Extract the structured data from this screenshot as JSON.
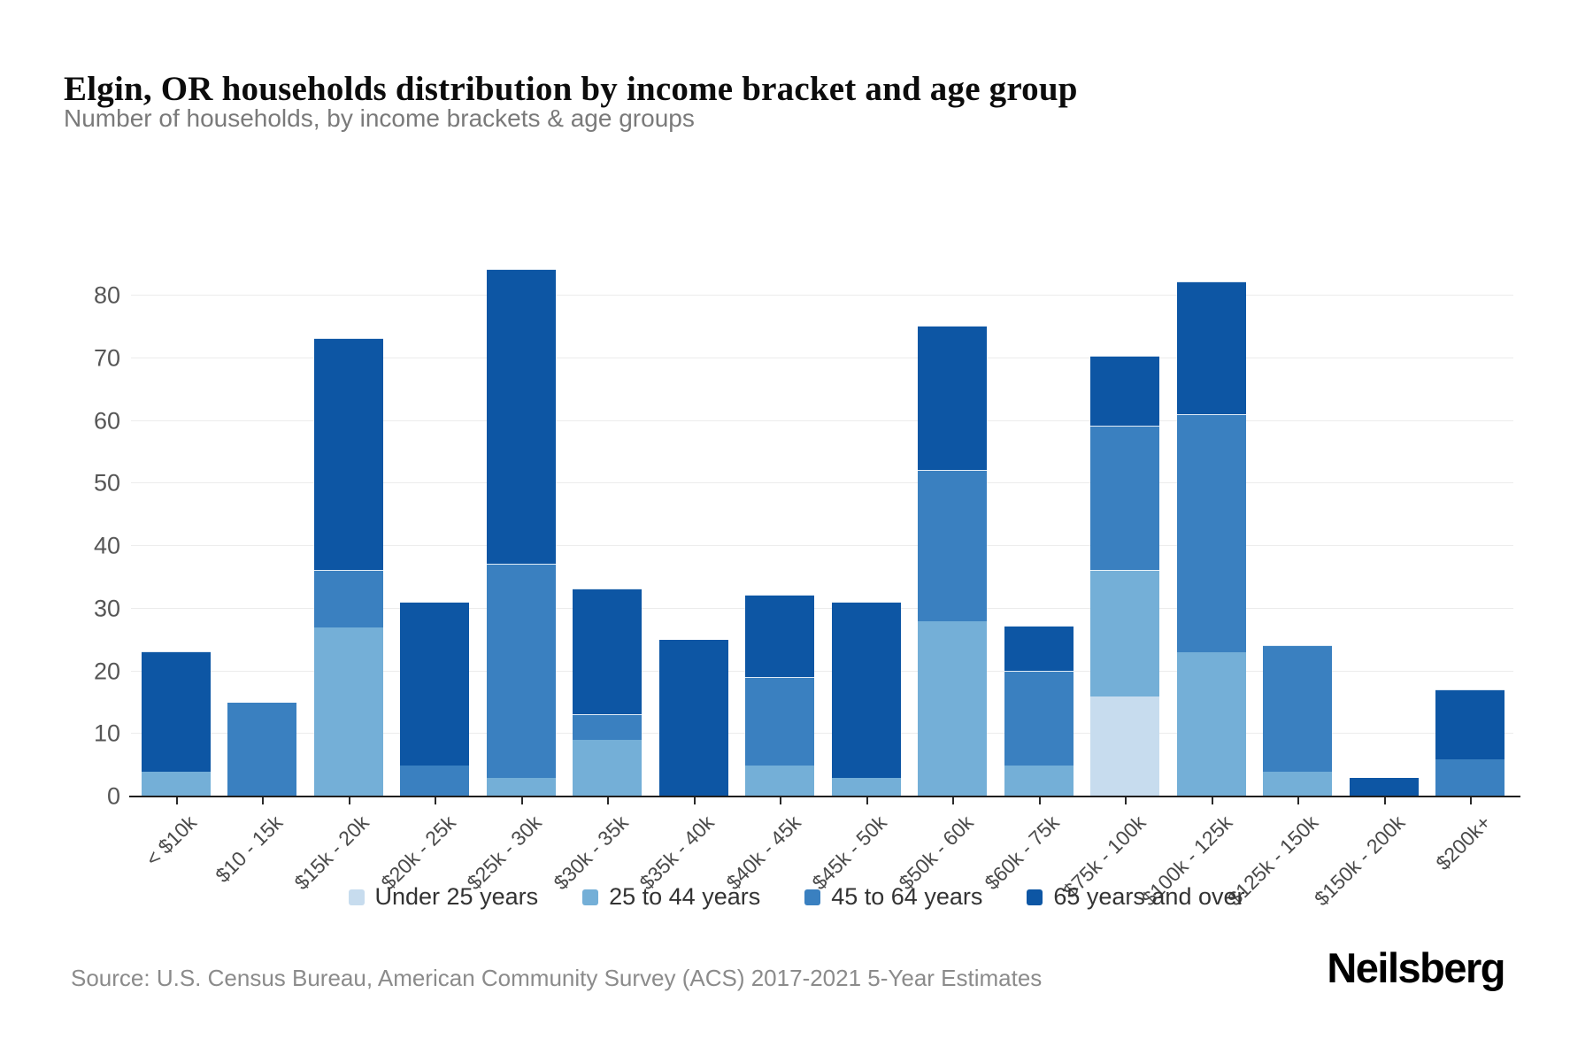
{
  "title": "Elgin, OR households distribution by income bracket and age group",
  "subtitle": "Number of households, by income brackets & age groups",
  "chart_data": {
    "type": "bar",
    "stacked": true,
    "title": "Elgin, OR households distribution by income bracket and age group",
    "xlabel": "",
    "ylabel": "",
    "ylim": [
      0,
      85
    ],
    "yticks": [
      0,
      10,
      20,
      30,
      40,
      50,
      60,
      70,
      80
    ],
    "grid": true,
    "legend_position": "bottom",
    "categories": [
      "< $10k",
      "$10 - 15k",
      "$15k - 20k",
      "$20k - 25k",
      "$25k - 30k",
      "$30k - 35k",
      "$35k - 40k",
      "$40k - 45k",
      "$45k - 50k",
      "$50k - 60k",
      "$60k - 75k",
      "$75k - 100k",
      "$100k - 125k",
      "$125k - 150k",
      "$150k - 200k",
      "$200k+"
    ],
    "series": [
      {
        "name": "Under 25 years",
        "color": "#c7dcee",
        "values": [
          0,
          0,
          0,
          0,
          0,
          0,
          0,
          0,
          0,
          0,
          0,
          16,
          0,
          0,
          0,
          0
        ]
      },
      {
        "name": "25 to 44 years",
        "color": "#74afd7",
        "values": [
          4,
          0,
          27,
          0,
          3,
          9,
          0,
          5,
          3,
          28,
          5,
          20,
          23,
          4,
          0,
          0
        ]
      },
      {
        "name": "45 to 64 years",
        "color": "#3a80c0",
        "values": [
          0,
          15,
          9,
          5,
          34,
          4,
          0,
          14,
          0,
          24,
          15,
          23,
          38,
          20,
          0,
          6
        ]
      },
      {
        "name": "65 years and over",
        "color": "#0d56a4",
        "values": [
          19,
          0,
          37,
          26,
          47,
          20,
          25,
          13,
          28,
          23,
          7,
          11,
          21,
          0,
          3,
          11
        ]
      }
    ],
    "totals": [
      23,
      15,
      73,
      31,
      84,
      33,
      25,
      32,
      31,
      75,
      27,
      70,
      82,
      24,
      3,
      17
    ]
  },
  "source": "Source: U.S. Census Bureau, American Community Survey (ACS) 2017-2021 5-Year Estimates",
  "brand": "Neilsberg"
}
